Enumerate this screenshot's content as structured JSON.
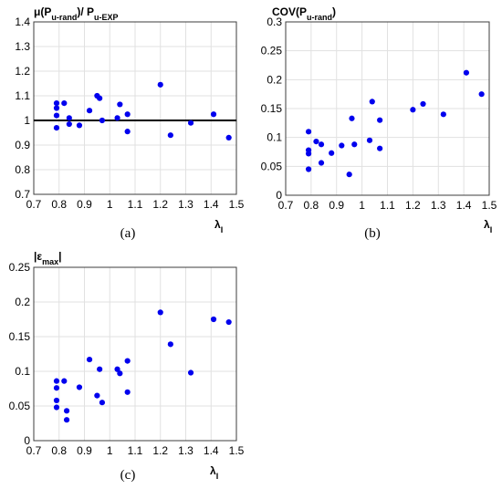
{
  "chart_data": [
    {
      "type": "scatter",
      "title": "",
      "ylabel_main": "μ(P",
      "ylabel_sub1": "u-rand",
      "ylabel_mid": ")/ P",
      "ylabel_sub2": "u-EXP",
      "xlabel_main": "λ",
      "xlabel_sub": "I",
      "caption": "(a)",
      "xlim": [
        0.7,
        1.5
      ],
      "ylim": [
        0.7,
        1.4
      ],
      "xticks": [
        "0.7",
        "0.8",
        "0.9",
        "1",
        "1.1",
        "1.2",
        "1.3",
        "1.4",
        "1.5"
      ],
      "yticks": [
        "0.7",
        "0.8",
        "0.9",
        "1",
        "1.1",
        "1.2",
        "1.3",
        "1.4"
      ],
      "grid": true,
      "reference_line_y": 1.0,
      "marker_color": "#0000ee",
      "points": [
        {
          "x": 0.79,
          "y": 1.07
        },
        {
          "x": 0.79,
          "y": 1.05
        },
        {
          "x": 0.79,
          "y": 1.02
        },
        {
          "x": 0.79,
          "y": 0.97
        },
        {
          "x": 0.82,
          "y": 1.07
        },
        {
          "x": 0.84,
          "y": 1.01
        },
        {
          "x": 0.84,
          "y": 0.985
        },
        {
          "x": 0.88,
          "y": 0.98
        },
        {
          "x": 0.92,
          "y": 1.04
        },
        {
          "x": 0.95,
          "y": 1.1
        },
        {
          "x": 0.96,
          "y": 1.09
        },
        {
          "x": 0.97,
          "y": 1.0
        },
        {
          "x": 1.03,
          "y": 1.01
        },
        {
          "x": 1.04,
          "y": 1.065
        },
        {
          "x": 1.07,
          "y": 1.025
        },
        {
          "x": 1.07,
          "y": 0.955
        },
        {
          "x": 1.2,
          "y": 1.145
        },
        {
          "x": 1.24,
          "y": 0.94
        },
        {
          "x": 1.32,
          "y": 0.99
        },
        {
          "x": 1.41,
          "y": 1.025
        },
        {
          "x": 1.47,
          "y": 0.93
        }
      ]
    },
    {
      "type": "scatter",
      "title": "",
      "ylabel_main": "COV(P",
      "ylabel_sub1": "u-rand",
      "ylabel_mid": ")",
      "ylabel_sub2": "",
      "xlabel_main": "λ",
      "xlabel_sub": "I",
      "caption": "(b)",
      "xlim": [
        0.7,
        1.5
      ],
      "ylim": [
        0,
        0.3
      ],
      "xticks": [
        "0.7",
        "0.8",
        "0.9",
        "1",
        "1.1",
        "1.2",
        "1.3",
        "1.4",
        "1.5"
      ],
      "yticks": [
        "0",
        "0.05",
        "0.1",
        "0.15",
        "0.2",
        "0.25",
        "0.3"
      ],
      "grid": true,
      "marker_color": "#0000ee",
      "points": [
        {
          "x": 0.79,
          "y": 0.11
        },
        {
          "x": 0.79,
          "y": 0.078
        },
        {
          "x": 0.79,
          "y": 0.072
        },
        {
          "x": 0.79,
          "y": 0.045
        },
        {
          "x": 0.82,
          "y": 0.093
        },
        {
          "x": 0.84,
          "y": 0.088
        },
        {
          "x": 0.84,
          "y": 0.056
        },
        {
          "x": 0.88,
          "y": 0.073
        },
        {
          "x": 0.92,
          "y": 0.086
        },
        {
          "x": 0.95,
          "y": 0.036
        },
        {
          "x": 0.96,
          "y": 0.133
        },
        {
          "x": 0.97,
          "y": 0.088
        },
        {
          "x": 1.03,
          "y": 0.095
        },
        {
          "x": 1.04,
          "y": 0.162
        },
        {
          "x": 1.07,
          "y": 0.13
        },
        {
          "x": 1.07,
          "y": 0.081
        },
        {
          "x": 1.2,
          "y": 0.148
        },
        {
          "x": 1.24,
          "y": 0.158
        },
        {
          "x": 1.32,
          "y": 0.14
        },
        {
          "x": 1.41,
          "y": 0.212
        },
        {
          "x": 1.47,
          "y": 0.175
        }
      ]
    },
    {
      "type": "scatter",
      "title": "",
      "ylabel_main": "|ε",
      "ylabel_sub1": "max",
      "ylabel_mid": "|",
      "ylabel_sub2": "",
      "xlabel_main": "λ",
      "xlabel_sub": "I",
      "caption": "(c)",
      "xlim": [
        0.7,
        1.5
      ],
      "ylim": [
        0,
        0.25
      ],
      "xticks": [
        "0.7",
        "0.8",
        "0.9",
        "1",
        "1.1",
        "1.2",
        "1.3",
        "1.4",
        "1.5"
      ],
      "yticks": [
        "0",
        "0.05",
        "0.1",
        "0.15",
        "0.2",
        "0.25"
      ],
      "grid": true,
      "marker_color": "#0000ee",
      "points": [
        {
          "x": 0.79,
          "y": 0.086
        },
        {
          "x": 0.79,
          "y": 0.076
        },
        {
          "x": 0.79,
          "y": 0.058
        },
        {
          "x": 0.79,
          "y": 0.048
        },
        {
          "x": 0.82,
          "y": 0.086
        },
        {
          "x": 0.83,
          "y": 0.043
        },
        {
          "x": 0.83,
          "y": 0.03
        },
        {
          "x": 0.88,
          "y": 0.077
        },
        {
          "x": 0.92,
          "y": 0.117
        },
        {
          "x": 0.95,
          "y": 0.065
        },
        {
          "x": 0.96,
          "y": 0.103
        },
        {
          "x": 0.97,
          "y": 0.055
        },
        {
          "x": 1.03,
          "y": 0.103
        },
        {
          "x": 1.04,
          "y": 0.097
        },
        {
          "x": 1.07,
          "y": 0.115
        },
        {
          "x": 1.07,
          "y": 0.07
        },
        {
          "x": 1.2,
          "y": 0.185
        },
        {
          "x": 1.24,
          "y": 0.139
        },
        {
          "x": 1.32,
          "y": 0.098
        },
        {
          "x": 1.41,
          "y": 0.175
        },
        {
          "x": 1.47,
          "y": 0.171
        }
      ]
    }
  ]
}
